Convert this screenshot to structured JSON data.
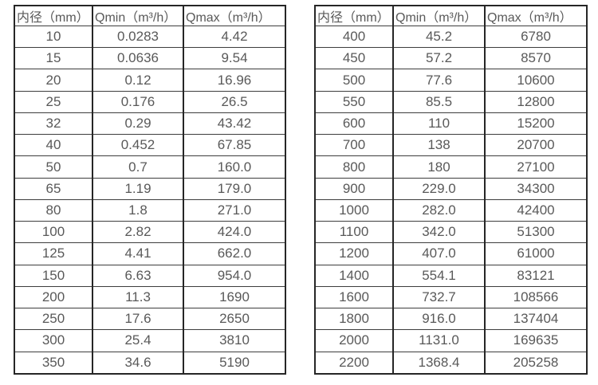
{
  "styles": {
    "background": "#ffffff",
    "text_color": "#595959",
    "border_color": "#262626"
  },
  "chart_data": [
    {
      "type": "table",
      "name": "flow-rate-table-small-diameters",
      "columns": [
        "内径（mm）",
        "Qmin（m³/h）",
        "Qmax（m³/h）"
      ],
      "rows": [
        [
          "10",
          "0.0283",
          "4.42"
        ],
        [
          "15",
          "0.0636",
          "9.54"
        ],
        [
          "20",
          "0.12",
          "16.96"
        ],
        [
          "25",
          "0.176",
          "26.5"
        ],
        [
          "32",
          "0.29",
          "43.42"
        ],
        [
          "40",
          "0.452",
          "67.85"
        ],
        [
          "50",
          "0.7",
          "160.0"
        ],
        [
          "65",
          "1.19",
          "179.0"
        ],
        [
          "80",
          "1.8",
          "271.0"
        ],
        [
          "100",
          "2.82",
          "424.0"
        ],
        [
          "125",
          "4.41",
          "662.0"
        ],
        [
          "150",
          "6.63",
          "954.0"
        ],
        [
          "200",
          "11.3",
          "1690"
        ],
        [
          "250",
          "17.6",
          "2650"
        ],
        [
          "300",
          "25.4",
          "3810"
        ],
        [
          "350",
          "34.6",
          "5190"
        ]
      ]
    },
    {
      "type": "table",
      "name": "flow-rate-table-large-diameters",
      "columns": [
        "内径（mm）",
        "Qmin（m³/h）",
        "Qmax（m³/h）"
      ],
      "rows": [
        [
          "400",
          "45.2",
          "6780"
        ],
        [
          "450",
          "57.2",
          "8570"
        ],
        [
          "500",
          "77.6",
          "10600"
        ],
        [
          "550",
          "85.5",
          "12800"
        ],
        [
          "600",
          "110",
          "15200"
        ],
        [
          "700",
          "138",
          "20700"
        ],
        [
          "800",
          "180",
          "27100"
        ],
        [
          "900",
          "229.0",
          "34300"
        ],
        [
          "1000",
          "282.0",
          "42400"
        ],
        [
          "1100",
          "342.0",
          "51300"
        ],
        [
          "1200",
          "407.0",
          "61000"
        ],
        [
          "1400",
          "554.1",
          "83121"
        ],
        [
          "1600",
          "732.7",
          "108566"
        ],
        [
          "1800",
          "916.0",
          "137404"
        ],
        [
          "2000",
          "1131.0",
          "169635"
        ],
        [
          "2200",
          "1368.4",
          "205258"
        ]
      ]
    }
  ]
}
